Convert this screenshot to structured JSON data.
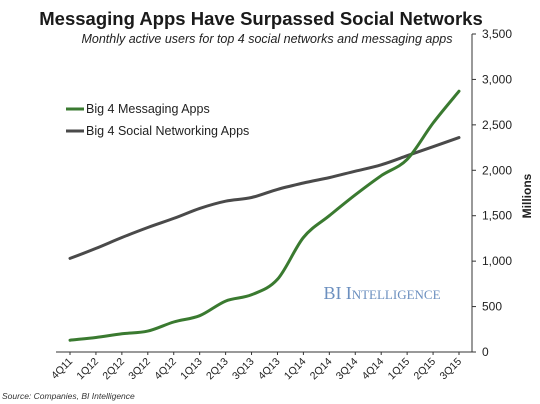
{
  "chart_data": {
    "type": "line",
    "title": "Messaging Apps Have Surpassed Social Networks",
    "subtitle": "Monthly active users for top 4 social networks and messaging apps",
    "ylabel": "Millions",
    "ylim": [
      0,
      3500
    ],
    "yticks": [
      "0",
      "500",
      "1,000",
      "1,500",
      "2,000",
      "2,500",
      "3,000",
      "3,500"
    ],
    "ytick_values": [
      0,
      500,
      1000,
      1500,
      2000,
      2500,
      3000,
      3500
    ],
    "y_axis_side": "right",
    "grid": false,
    "legend_position": "upper-left",
    "categories": [
      "4Q11",
      "1Q12",
      "2Q12",
      "3Q12",
      "4Q12",
      "1Q13",
      "2Q13",
      "3Q13",
      "4Q13",
      "1Q14",
      "2Q14",
      "3Q14",
      "4Q14",
      "1Q15",
      "2Q15",
      "3Q15"
    ],
    "series": [
      {
        "name": "Big 4 Messaging Apps",
        "color": "#3a7a30",
        "values": [
          130,
          160,
          200,
          230,
          330,
          400,
          560,
          630,
          800,
          1260,
          1500,
          1730,
          1940,
          2120,
          2520,
          2870
        ]
      },
      {
        "name": "Big 4 Social Networking Apps",
        "color": "#4a4a4a",
        "values": [
          1030,
          1140,
          1260,
          1370,
          1470,
          1580,
          1660,
          1700,
          1790,
          1860,
          1920,
          1990,
          2060,
          2160,
          2260,
          2360
        ]
      }
    ]
  },
  "watermark": "BI Intelligence",
  "source": "Source: Companies, BI Intelligence"
}
